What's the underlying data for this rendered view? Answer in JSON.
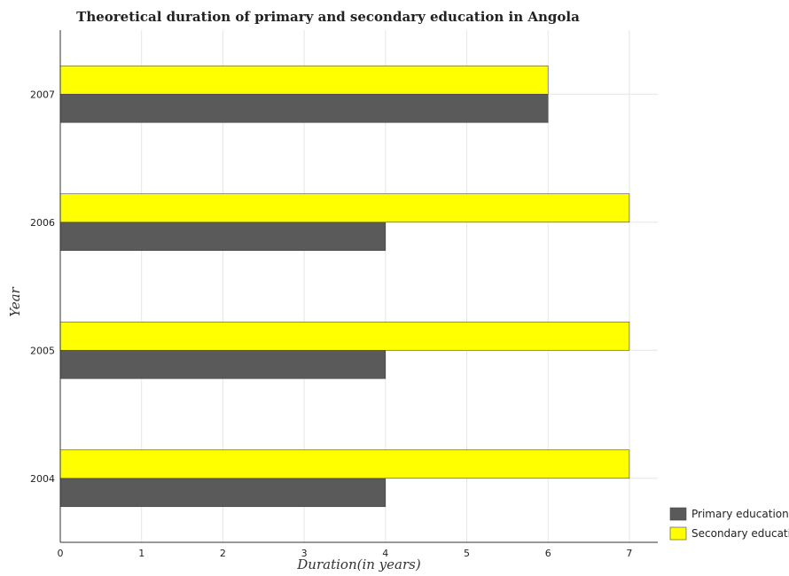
{
  "chart_data": {
    "type": "bar",
    "orientation": "horizontal",
    "title": "Theoretical duration of primary and secondary education in Angola",
    "xlabel": "Duration(in years)",
    "ylabel": "Year",
    "categories": [
      "2004",
      "2005",
      "2006",
      "2007"
    ],
    "xlim": [
      0,
      7.35
    ],
    "xticks": [
      "0",
      "1",
      "2",
      "3",
      "4",
      "5",
      "6",
      "7"
    ],
    "grid": true,
    "legend_position": "bottom-right",
    "series": [
      {
        "name": "Primary education",
        "values": [
          4,
          4,
          4,
          6
        ],
        "color": "#5a5a5a"
      },
      {
        "name": "Secondary education",
        "values": [
          7,
          7,
          7,
          6
        ],
        "color": "#ffff00"
      }
    ]
  }
}
